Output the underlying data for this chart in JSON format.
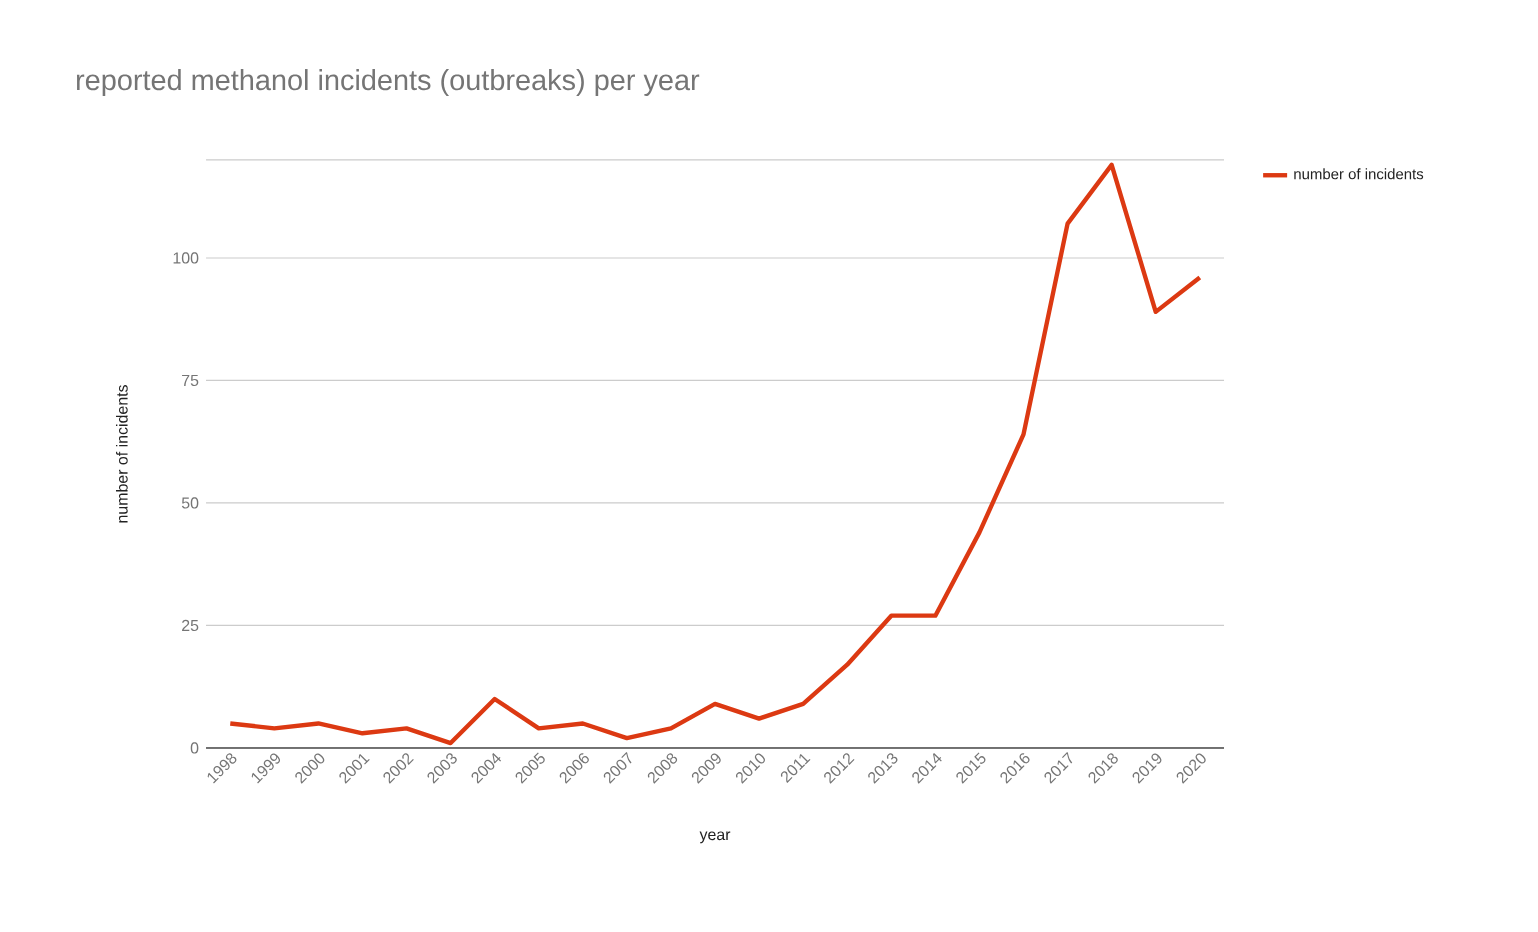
{
  "chart_data": {
    "type": "line",
    "title": "reported methanol incidents (outbreaks) per year",
    "xlabel": "year",
    "ylabel": "number of incidents",
    "categories": [
      "1998",
      "1999",
      "2000",
      "2001",
      "2002",
      "2003",
      "2004",
      "2005",
      "2006",
      "2007",
      "2008",
      "2009",
      "2010",
      "2011",
      "2012",
      "2013",
      "2014",
      "2015",
      "2016",
      "2017",
      "2018",
      "2019",
      "2020"
    ],
    "series": [
      {
        "name": "number of incidents",
        "color": "#dc3912",
        "values": [
          5,
          4,
          5,
          3,
          4,
          1,
          10,
          4,
          5,
          2,
          4,
          9,
          6,
          9,
          17,
          27,
          27,
          44,
          64,
          107,
          119,
          89,
          96
        ]
      }
    ],
    "ylim": [
      0,
      120
    ],
    "yticks": [
      0,
      25,
      50,
      75,
      100,
      {
        "value": 120,
        "label": null
      }
    ],
    "grid": "y",
    "legend": "top right",
    "marker": "none",
    "line_style": "solid"
  }
}
